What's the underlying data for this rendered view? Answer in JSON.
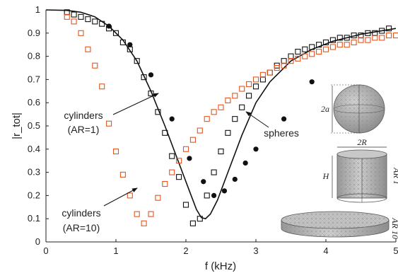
{
  "chart_data": {
    "type": "scatter",
    "title": "",
    "xlabel": "f (kHz)",
    "ylabel": "|r_tot|",
    "xlim": [
      0,
      5
    ],
    "ylim": [
      0,
      1
    ],
    "xticks": [
      "0",
      "1",
      "2",
      "3",
      "4",
      "5"
    ],
    "yticks": [
      "0",
      "0.1",
      "0.2",
      "0.3",
      "0.4",
      "0.5",
      "0.6",
      "0.7",
      "0.8",
      "0.9",
      "1"
    ],
    "grid": false,
    "legend": "none",
    "series": [
      {
        "marker": "line",
        "color": "#111111",
        "x": [
          0,
          0.3,
          0.5,
          0.7,
          0.9,
          1.1,
          1.3,
          1.5,
          1.7,
          1.9,
          2.05,
          2.15,
          2.22,
          2.28,
          2.35,
          2.45,
          2.6,
          2.8,
          3.0,
          3.2,
          3.5,
          3.8,
          4.1,
          4.5,
          5.0
        ],
        "y": [
          1.0,
          0.998,
          0.99,
          0.97,
          0.93,
          0.87,
          0.78,
          0.65,
          0.5,
          0.34,
          0.22,
          0.14,
          0.105,
          0.1,
          0.12,
          0.18,
          0.3,
          0.46,
          0.6,
          0.69,
          0.78,
          0.83,
          0.865,
          0.895,
          0.92
        ]
      },
      {
        "marker": "filled-circle",
        "color": "#111111",
        "x": [
          0.9,
          1.2,
          1.5,
          1.8,
          2.05,
          2.25,
          2.4,
          2.55,
          2.7,
          2.85,
          3.0,
          3.4,
          3.8
        ],
        "y": [
          0.93,
          0.85,
          0.72,
          0.53,
          0.36,
          0.26,
          0.2,
          0.22,
          0.27,
          0.34,
          0.4,
          0.53,
          0.69
        ]
      },
      {
        "marker": "open-square",
        "color": "#111111",
        "x": [
          0.3,
          0.4,
          0.5,
          0.6,
          0.7,
          0.8,
          0.9,
          1.0,
          1.1,
          1.2,
          1.3,
          1.4,
          1.5,
          1.6,
          1.7,
          1.8,
          1.9,
          2.0,
          2.1,
          2.2,
          2.3,
          2.4,
          2.5,
          2.6,
          2.7,
          2.8,
          2.9,
          3.0,
          3.1,
          3.2,
          3.3,
          3.4,
          3.5,
          3.6,
          3.7,
          3.8,
          3.9,
          4.0,
          4.1,
          4.2,
          4.3,
          4.4,
          4.5,
          4.6,
          4.7,
          4.8,
          4.9
        ],
        "y": [
          0.99,
          0.98,
          0.97,
          0.96,
          0.95,
          0.94,
          0.92,
          0.9,
          0.86,
          0.83,
          0.78,
          0.71,
          0.64,
          0.56,
          0.47,
          0.37,
          0.28,
          0.16,
          0.08,
          0.1,
          0.2,
          0.3,
          0.39,
          0.47,
          0.53,
          0.58,
          0.63,
          0.67,
          0.7,
          0.73,
          0.76,
          0.78,
          0.8,
          0.82,
          0.83,
          0.84,
          0.85,
          0.86,
          0.87,
          0.88,
          0.88,
          0.89,
          0.89,
          0.9,
          0.9,
          0.91,
          0.92
        ]
      },
      {
        "marker": "open-square",
        "color": "#e2561f",
        "x": [
          0.3,
          0.4,
          0.5,
          0.6,
          0.7,
          0.8,
          0.9,
          1.0,
          1.1,
          1.2,
          1.3,
          1.4,
          1.5,
          1.6,
          1.7,
          1.8,
          1.9,
          2.0,
          2.1,
          2.2,
          2.3,
          2.4,
          2.5,
          2.6,
          2.7,
          2.8,
          2.9,
          3.0,
          3.1,
          3.2,
          3.3,
          3.4,
          3.5,
          3.6,
          3.7,
          3.8,
          3.9,
          4.0,
          4.1,
          4.2,
          4.3,
          4.4,
          4.5,
          4.6,
          4.7,
          4.8,
          4.9,
          5.0
        ],
        "y": [
          0.97,
          0.95,
          0.9,
          0.83,
          0.76,
          0.67,
          0.51,
          0.39,
          0.29,
          0.2,
          0.12,
          0.08,
          0.12,
          0.19,
          0.25,
          0.3,
          0.35,
          0.4,
          0.44,
          0.48,
          0.53,
          0.56,
          0.58,
          0.61,
          0.63,
          0.66,
          0.68,
          0.7,
          0.72,
          0.73,
          0.75,
          0.76,
          0.78,
          0.79,
          0.8,
          0.81,
          0.82,
          0.83,
          0.84,
          0.85,
          0.85,
          0.86,
          0.87,
          0.87,
          0.88,
          0.88,
          0.89,
          0.89
        ]
      }
    ],
    "annotations": [
      {
        "lines": [
          "cylinders",
          "(AR=1)"
        ],
        "color": "#111111"
      },
      {
        "lines": [
          "cylinders",
          "(AR=10)"
        ],
        "color": "#111111"
      },
      {
        "lines": [
          "spheres"
        ],
        "color": "#111111"
      }
    ],
    "inset_labels": {
      "sphere_dim": "2a",
      "cyl_width": "2R",
      "cyl_height": "H",
      "cyl_tag": "AR 1",
      "disk_tag": "AR 10"
    }
  }
}
